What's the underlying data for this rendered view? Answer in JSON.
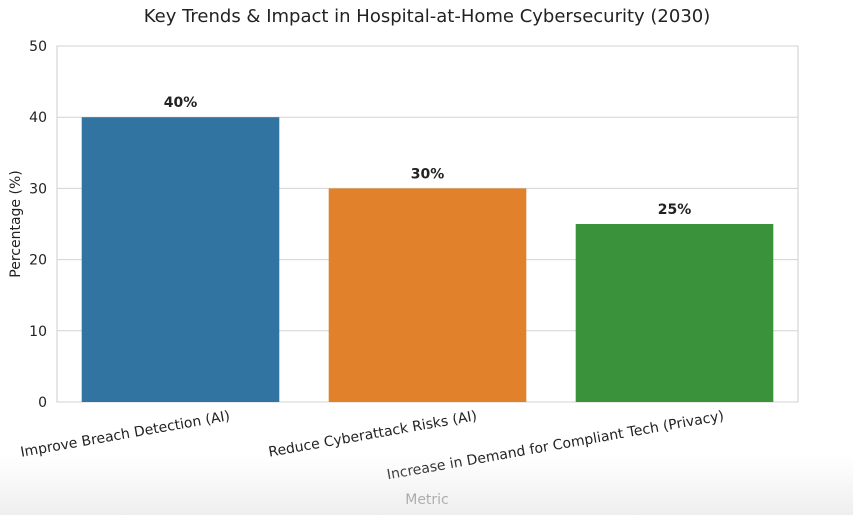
{
  "chart_data": {
    "type": "bar",
    "title": "Key Trends & Impact in Hospital-at-Home Cybersecurity (2030)",
    "xlabel": "Metric",
    "ylabel": "Percentage (%)",
    "ylim": [
      0,
      50
    ],
    "yticks": [
      0,
      10,
      20,
      30,
      40,
      50
    ],
    "grid": true,
    "categories": [
      "Improve Breach Detection (AI)",
      "Reduce Cyberattack Risks (AI)",
      "Increase in Demand for Compliant Tech (Privacy)"
    ],
    "values": [
      40,
      30,
      25
    ],
    "value_labels": [
      "40%",
      "30%",
      "25%"
    ],
    "colors": [
      "#3274a1",
      "#e1812c",
      "#3a923a"
    ]
  }
}
